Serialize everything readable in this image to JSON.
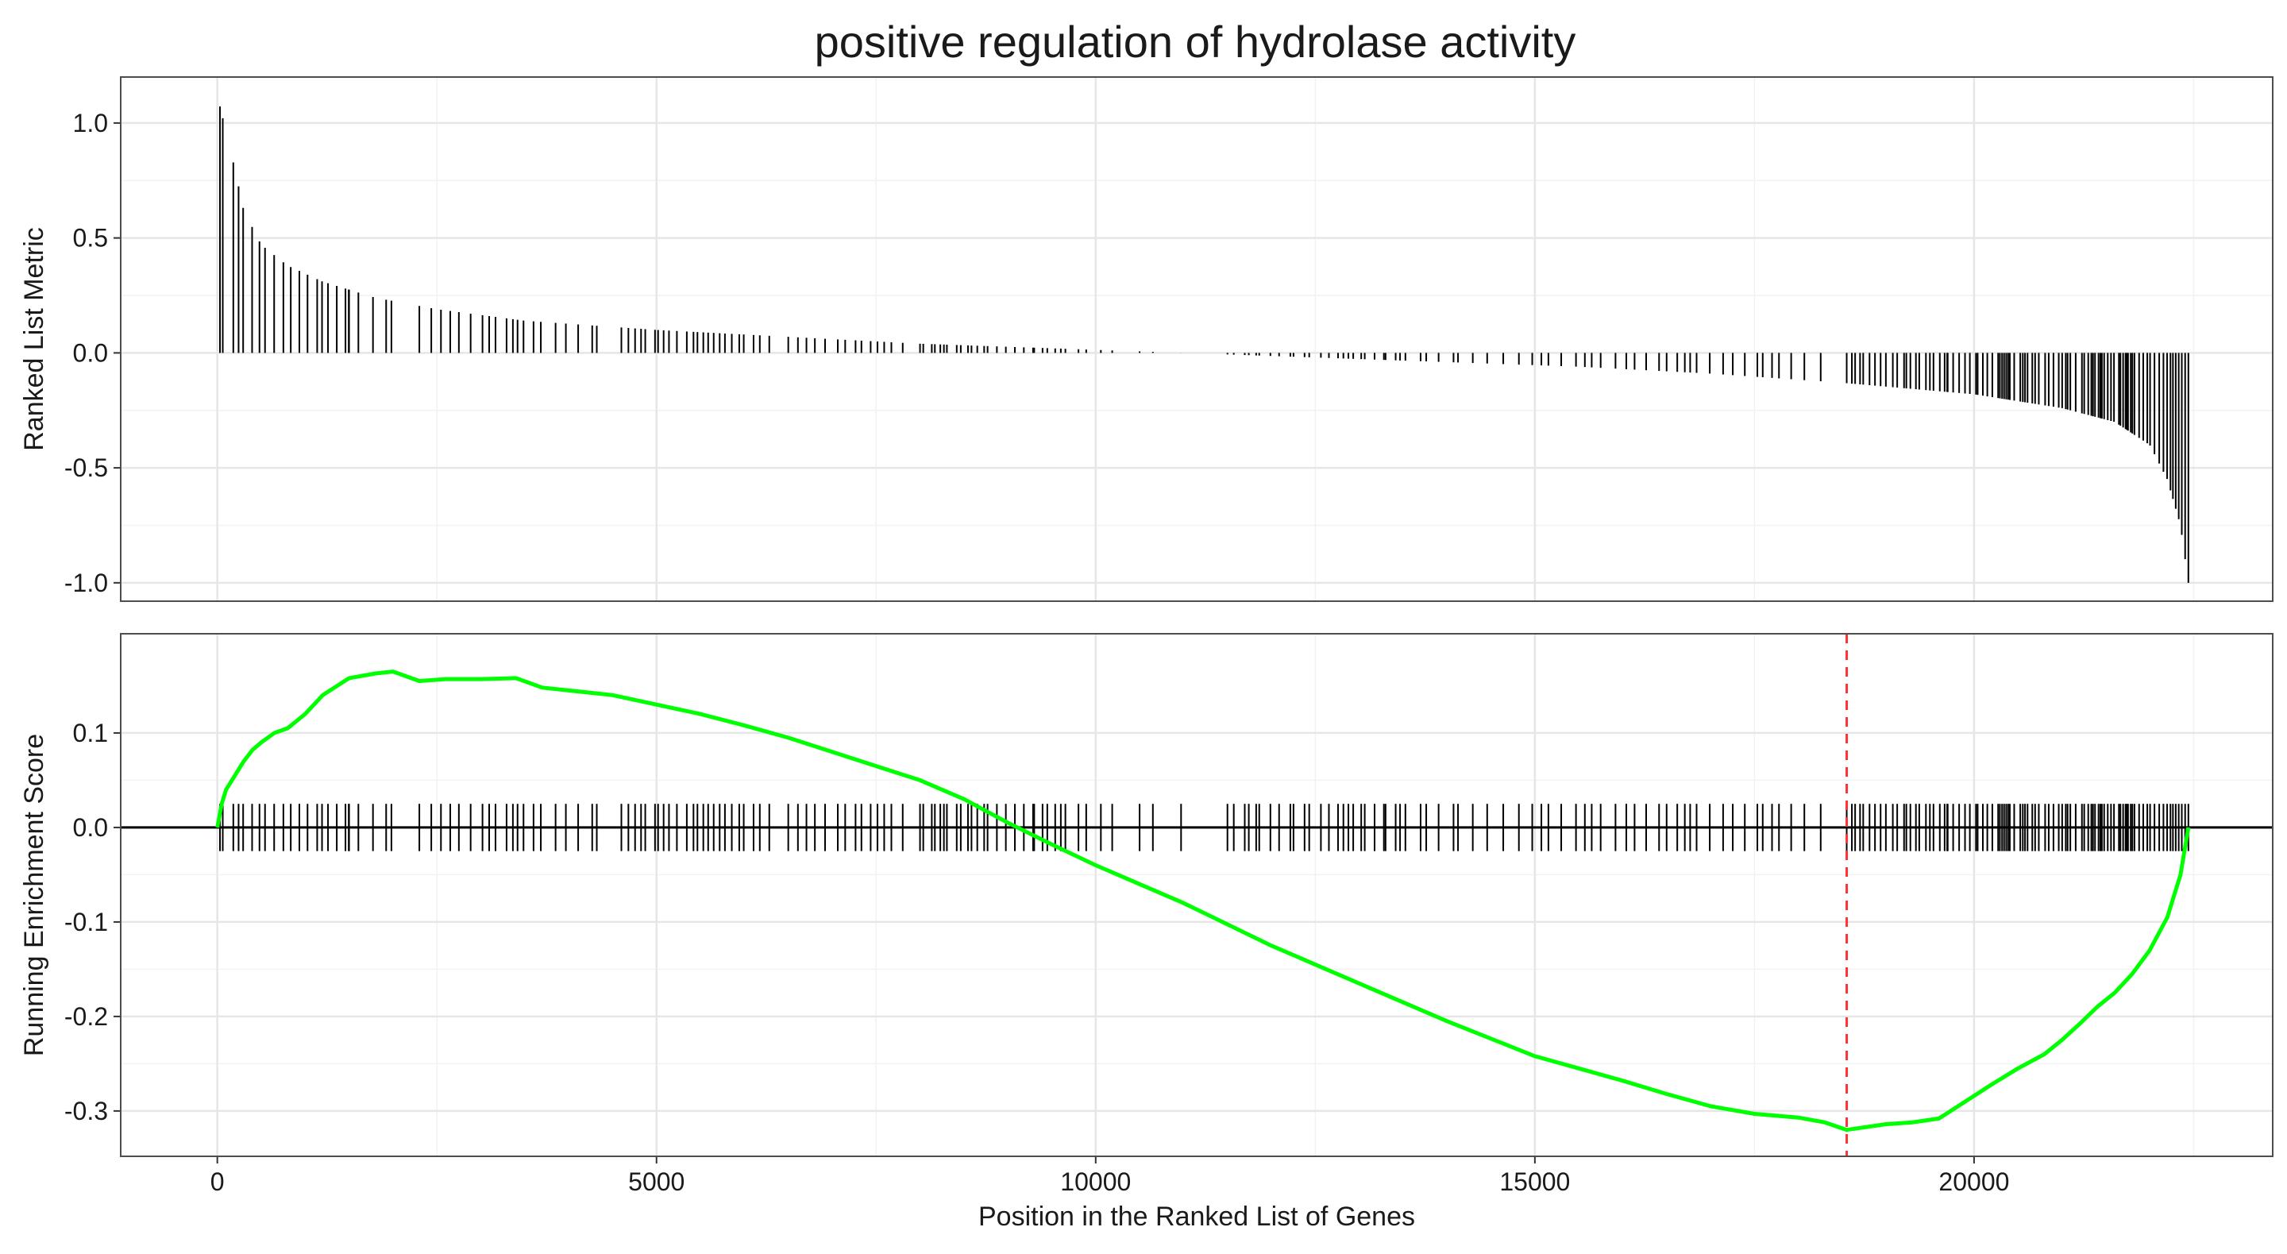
{
  "title": "positive regulation of hydrolase activity",
  "colors": {
    "running_score_line": "#00ff00",
    "max_deviation_line": "#ff3333",
    "bars": "#000000",
    "grid_major": "#e6e6e6",
    "grid_minor": "#f2f2f2",
    "panel_border": "#4d4d4d"
  },
  "chart_data": [
    {
      "type": "bar",
      "panel": "top",
      "ylabel": "Ranked List Metric",
      "xlim": [
        -1100,
        23400
      ],
      "ylim": [
        -1.08,
        1.2
      ],
      "x_ticks": [
        0,
        5000,
        10000,
        15000,
        20000
      ],
      "y_ticks": [
        1.0,
        0.5,
        0.0,
        -0.5,
        -1.0
      ],
      "y_tick_labels": [
        "1.0",
        "0.5",
        "0.0",
        "-0.5",
        "-1.0"
      ],
      "gene_count": 22440,
      "metric_curve": [
        [
          0,
          1.12
        ],
        [
          100,
          0.96
        ],
        [
          200,
          0.8
        ],
        [
          300,
          0.62
        ],
        [
          500,
          0.47
        ],
        [
          800,
          0.38
        ],
        [
          1200,
          0.31
        ],
        [
          1800,
          0.24
        ],
        [
          2500,
          0.19
        ],
        [
          3500,
          0.14
        ],
        [
          5000,
          0.1
        ],
        [
          6500,
          0.07
        ],
        [
          8000,
          0.04
        ],
        [
          9500,
          0.02
        ],
        [
          11000,
          0.0
        ],
        [
          12500,
          -0.02
        ],
        [
          14000,
          -0.04
        ],
        [
          15500,
          -0.06
        ],
        [
          17000,
          -0.09
        ],
        [
          18500,
          -0.13
        ],
        [
          20000,
          -0.18
        ],
        [
          21000,
          -0.24
        ],
        [
          21600,
          -0.3
        ],
        [
          22000,
          -0.4
        ],
        [
          22200,
          -0.55
        ],
        [
          22350,
          -0.75
        ],
        [
          22440,
          -1.0
        ]
      ],
      "grid": true
    },
    {
      "type": "line",
      "panel": "bottom",
      "xlabel": "Position in the Ranked List of Genes",
      "ylabel": "Running Enrichment Score",
      "xlim": [
        -1100,
        23400
      ],
      "ylim": [
        -0.348,
        0.205
      ],
      "x_ticks": [
        0,
        5000,
        10000,
        15000,
        20000
      ],
      "x_tick_labels": [
        "0",
        "5000",
        "10000",
        "15000",
        "20000"
      ],
      "y_ticks": [
        0.1,
        0.0,
        -0.1,
        -0.2,
        -0.3
      ],
      "y_tick_labels": [
        "0.1",
        "0.0",
        "-0.1",
        "-0.2",
        "-0.3"
      ],
      "series": [
        {
          "x": [
            0,
            50,
            100,
            200,
            300,
            400,
            500,
            650,
            800,
            1000,
            1200,
            1500,
            1800,
            2000,
            2300,
            2600,
            3000,
            3400,
            3700,
            4000,
            4500,
            5000,
            5500,
            6000,
            6500,
            7000,
            7500,
            8000,
            8500,
            9000,
            9500,
            10000,
            11000,
            12000,
            13000,
            14000,
            15000,
            15500,
            16000,
            16500,
            17000,
            17500,
            18000,
            18300,
            18550,
            18700,
            19000,
            19300,
            19600,
            19900,
            20200,
            20500,
            20800,
            21000,
            21200,
            21400,
            21600,
            21800,
            22000,
            22200,
            22350,
            22440
          ],
          "y": [
            0.0,
            0.025,
            0.04,
            0.055,
            0.07,
            0.082,
            0.09,
            0.1,
            0.105,
            0.12,
            0.14,
            0.158,
            0.163,
            0.165,
            0.155,
            0.157,
            0.157,
            0.158,
            0.148,
            0.145,
            0.14,
            0.13,
            0.12,
            0.108,
            0.095,
            0.08,
            0.065,
            0.05,
            0.03,
            0.005,
            -0.018,
            -0.04,
            -0.08,
            -0.125,
            -0.165,
            -0.205,
            -0.242,
            -0.255,
            -0.268,
            -0.282,
            -0.295,
            -0.303,
            -0.307,
            -0.312,
            -0.32,
            -0.318,
            -0.314,
            -0.312,
            -0.308,
            -0.29,
            -0.272,
            -0.255,
            -0.24,
            -0.225,
            -0.208,
            -0.19,
            -0.175,
            -0.155,
            -0.13,
            -0.095,
            -0.05,
            0.0
          ]
        }
      ],
      "max_deviation_x": 18550,
      "hit_tick_height": 0.025,
      "hit_segments": [
        [
          30,
          1500,
          80
        ],
        [
          1500,
          2000,
          110
        ],
        [
          2300,
          3500,
          90
        ],
        [
          3600,
          4400,
          110
        ],
        [
          4600,
          6300,
          75
        ],
        [
          6500,
          7900,
          95
        ],
        [
          8000,
          9300,
          70
        ],
        [
          9300,
          10300,
          130
        ],
        [
          10500,
          11000,
          220
        ],
        [
          11500,
          13300,
          85
        ],
        [
          13300,
          16500,
          115
        ],
        [
          16500,
          17700,
          95
        ],
        [
          17700,
          18400,
          140
        ],
        [
          18550,
          19700,
          60
        ],
        [
          19700,
          21300,
          45
        ],
        [
          21300,
          22440,
          35
        ]
      ],
      "grid": true
    }
  ]
}
